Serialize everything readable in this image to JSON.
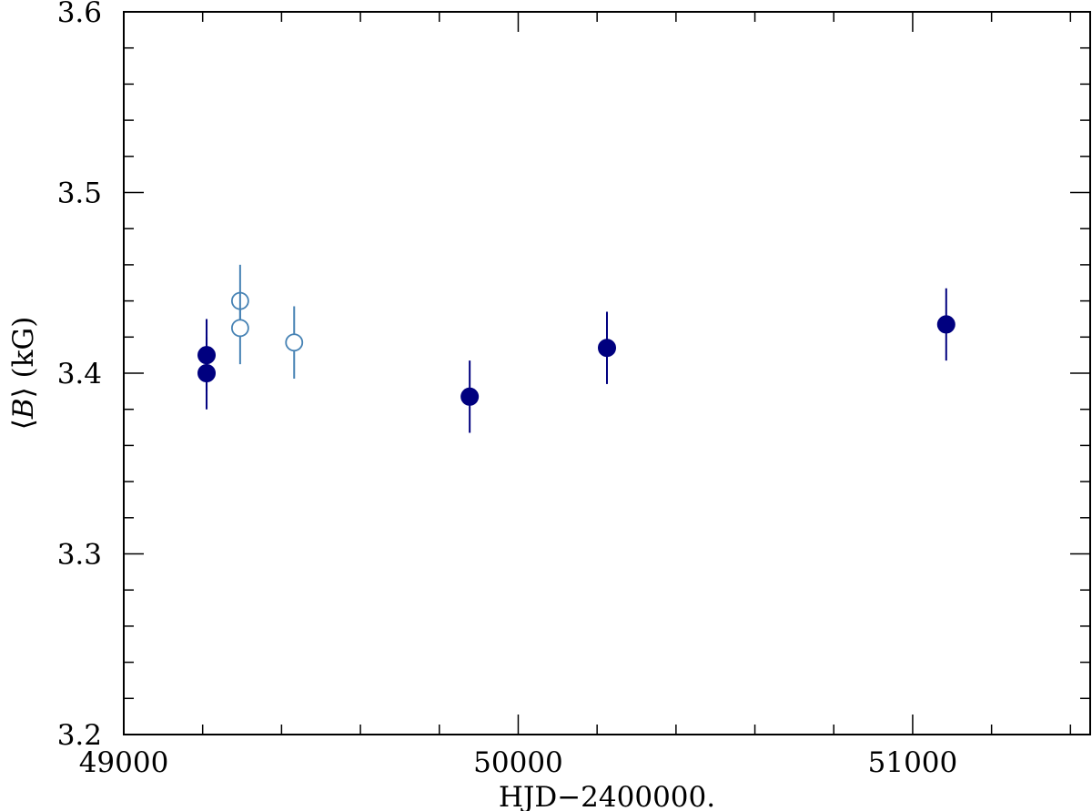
{
  "chart_data": {
    "type": "scatter",
    "xlabel": "HJD−2400000.",
    "ylabel": "⟨B⟩ (kG)",
    "xlim": [
      49000,
      51450
    ],
    "ylim": [
      3.2,
      3.6
    ],
    "x_major_ticks": [
      49000,
      50000,
      51000
    ],
    "x_minor_step": 200,
    "y_major_ticks": [
      3.2,
      3.3,
      3.4,
      3.5,
      3.6
    ],
    "y_minor_step": 0.02,
    "x_tick_labels": [
      "49000",
      "50000",
      "51000"
    ],
    "y_tick_labels": [
      "3.2",
      "3.3",
      "3.4",
      "3.5",
      "3.6"
    ],
    "grid": false,
    "series": [
      {
        "marker": "filled-circle",
        "color": "#00007f",
        "points": [
          {
            "x": 49210,
            "y": 3.41,
            "err": 0.02
          },
          {
            "x": 49210,
            "y": 3.4,
            "err": 0.02
          },
          {
            "x": 49877,
            "y": 3.387,
            "err": 0.02
          },
          {
            "x": 50225,
            "y": 3.414,
            "err": 0.02
          },
          {
            "x": 51085,
            "y": 3.427,
            "err": 0.02
          }
        ]
      },
      {
        "marker": "open-circle",
        "color": "#4682b4",
        "points": [
          {
            "x": 49295,
            "y": 3.44,
            "err": 0.02
          },
          {
            "x": 49295,
            "y": 3.425,
            "err": 0.02
          },
          {
            "x": 49432,
            "y": 3.417,
            "err": 0.02
          }
        ]
      }
    ]
  }
}
